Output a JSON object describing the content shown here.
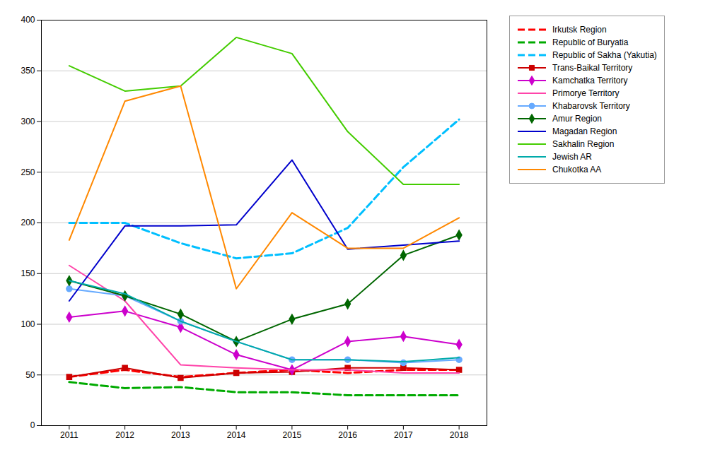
{
  "chart_data": {
    "type": "line",
    "x": [
      2011,
      2012,
      2013,
      2014,
      2015,
      2016,
      2017,
      2018
    ],
    "series": [
      {
        "name": "Irkutsk Region",
        "color": "#ff0000",
        "line_style": "dashed",
        "values": [
          48,
          55,
          48,
          52,
          55,
          52,
          55,
          55
        ]
      },
      {
        "name": "Republic of Buryatia",
        "color": "#00aa00",
        "line_style": "dashed",
        "values": [
          43,
          37,
          38,
          33,
          33,
          30,
          30,
          30
        ]
      },
      {
        "name": "Republic of Sakha (Yakutia)",
        "color": "#00bfff",
        "line_style": "dashed",
        "values": [
          200,
          200,
          180,
          165,
          170,
          195,
          255,
          302
        ]
      },
      {
        "name": "Trans-Baikal Territory",
        "color": "#cc0000",
        "line_style": "solid",
        "marker": "square",
        "values": [
          48,
          57,
          47,
          52,
          53,
          57,
          57,
          55
        ]
      },
      {
        "name": "Kamchatka Territory",
        "color": "#cc00cc",
        "line_style": "solid",
        "marker": "diamond",
        "values": [
          107,
          113,
          97,
          70,
          55,
          83,
          88,
          80
        ]
      },
      {
        "name": "Primorye Territory",
        "color": "#ff44aa",
        "line_style": "solid",
        "values": [
          158,
          123,
          60,
          57,
          55,
          55,
          52,
          52
        ]
      },
      {
        "name": "Khabarovsk Territory",
        "color": "#66aaff",
        "line_style": "solid",
        "marker": "circle",
        "values": [
          135,
          128,
          103,
          83,
          65,
          65,
          62,
          65
        ]
      },
      {
        "name": "Amur Region",
        "color": "#006600",
        "line_style": "solid",
        "marker": "diamond",
        "values": [
          143,
          128,
          110,
          83,
          105,
          120,
          168,
          188
        ]
      },
      {
        "name": "Magadan Region",
        "color": "#0000cc",
        "line_style": "solid",
        "values": [
          123,
          197,
          197,
          198,
          262,
          174,
          178,
          182
        ]
      },
      {
        "name": "Sakhalin Region",
        "color": "#44cc00",
        "line_style": "solid",
        "values": [
          355,
          330,
          335,
          383,
          367,
          290,
          238,
          238
        ]
      },
      {
        "name": "Jewish AR",
        "color": "#00aaaa",
        "line_style": "solid",
        "values": [
          143,
          130,
          103,
          83,
          65,
          65,
          63,
          67
        ]
      },
      {
        "name": "Chukotka AA",
        "color": "#ff8800",
        "line_style": "solid",
        "values": [
          183,
          320,
          335,
          135,
          210,
          175,
          175,
          205
        ]
      }
    ],
    "xlim": [
      2010.5,
      2018.5
    ],
    "xticks": [
      2011,
      2012,
      2013,
      2014,
      2015,
      2016,
      2017,
      2018
    ],
    "ylim": [
      0,
      400
    ],
    "yticks": [
      0,
      50,
      100,
      150,
      200,
      250,
      300,
      350,
      400
    ],
    "grid": "y",
    "legend": "right"
  }
}
